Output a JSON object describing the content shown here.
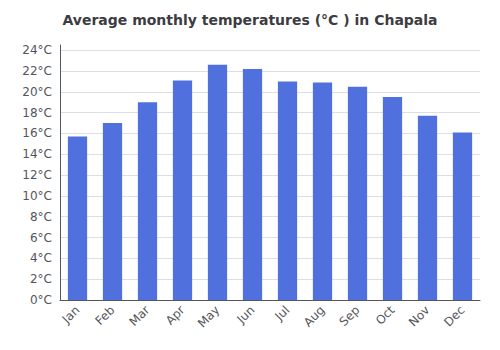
{
  "chart_data": {
    "type": "bar",
    "title": "Average monthly temperatures (°C ) in Chapala",
    "categories": [
      "Jan",
      "Feb",
      "Mar",
      "Apr",
      "May",
      "Jun",
      "Jul",
      "Aug",
      "Sep",
      "Oct",
      "Nov",
      "Dec"
    ],
    "values": [
      15.7,
      17.0,
      19.0,
      21.1,
      22.6,
      22.2,
      21.0,
      20.9,
      20.5,
      19.5,
      17.7,
      16.1
    ],
    "ylim": [
      0,
      24.5
    ],
    "yticks": [
      {
        "value": 0,
        "label": "0°C"
      },
      {
        "value": 2,
        "label": "2°C"
      },
      {
        "value": 4,
        "label": "4°C"
      },
      {
        "value": 6,
        "label": "6°C"
      },
      {
        "value": 8,
        "label": "8°C"
      },
      {
        "value": 10,
        "label": "10°C"
      },
      {
        "value": 12,
        "label": "12°C"
      },
      {
        "value": 14,
        "label": "14°C"
      },
      {
        "value": 16,
        "label": "16°C"
      },
      {
        "value": 18,
        "label": "18°C"
      },
      {
        "value": 20,
        "label": "20°C"
      },
      {
        "value": 22,
        "label": "22°C"
      },
      {
        "value": 24,
        "label": "24°C"
      }
    ],
    "grid": true
  }
}
